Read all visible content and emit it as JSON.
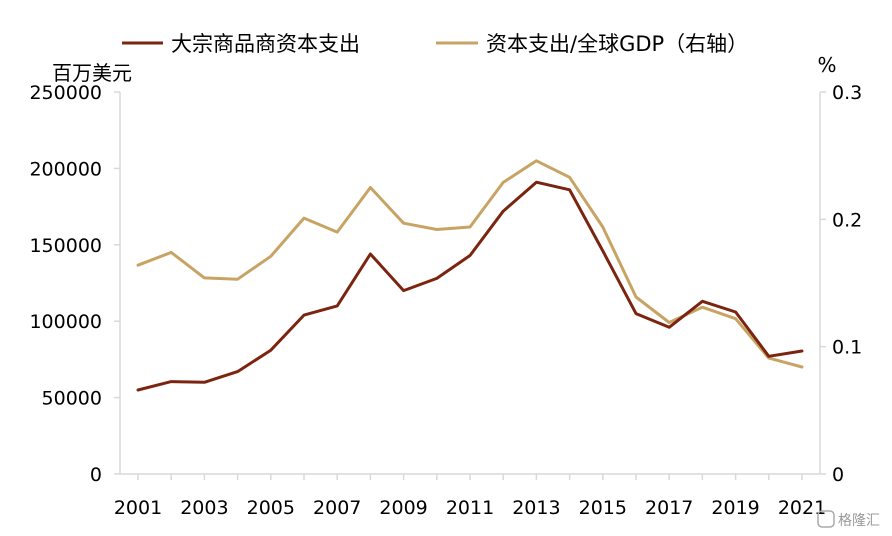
{
  "chart_data": {
    "type": "line",
    "x": [
      2001,
      2002,
      2003,
      2004,
      2005,
      2006,
      2007,
      2008,
      2009,
      2010,
      2011,
      2012,
      2013,
      2014,
      2015,
      2016,
      2017,
      2018,
      2019,
      2020,
      2021
    ],
    "x_tick_labels": [
      "2001",
      "2003",
      "2005",
      "2007",
      "2009",
      "2011",
      "2013",
      "2015",
      "2017",
      "2019",
      "2021"
    ],
    "series": [
      {
        "name": "大宗商品商资本支出",
        "axis": "left",
        "color": "#7B2511",
        "values": [
          55000,
          60500,
          60000,
          67000,
          81000,
          104000,
          110000,
          144000,
          120000,
          128000,
          143000,
          172000,
          191000,
          186000,
          146000,
          105000,
          96000,
          113000,
          106000,
          77000,
          80500
        ]
      },
      {
        "name": "资本支出/全球GDP（右轴）",
        "axis": "right",
        "color": "#C8A464",
        "values": [
          0.164,
          0.174,
          0.154,
          0.153,
          0.171,
          0.201,
          0.19,
          0.225,
          0.197,
          0.192,
          0.194,
          0.229,
          0.246,
          0.233,
          0.194,
          0.139,
          0.119,
          0.131,
          0.122,
          0.091,
          0.084
        ]
      }
    ],
    "y_left": {
      "unit_label": "百万美元",
      "range": [
        0,
        250000
      ],
      "ticks": [
        "0",
        "50000",
        "100000",
        "150000",
        "200000",
        "250000"
      ]
    },
    "y_right": {
      "unit_label": "%",
      "range": [
        0,
        0.3
      ],
      "ticks": [
        "0",
        "0.1",
        "0.2",
        "0.3"
      ]
    },
    "grid": false,
    "legend_position": "top"
  },
  "watermark": "格隆汇"
}
